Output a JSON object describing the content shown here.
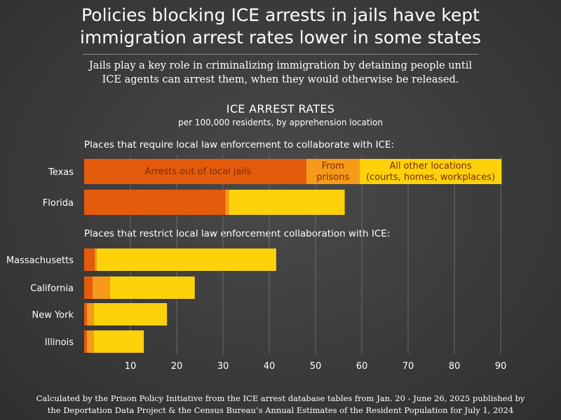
{
  "title_line1": "Policies blocking ICE arrests in jails have kept",
  "title_line2": "immigration arrest rates lower in some states",
  "subtitle_line1": "Jails play a key role in criminalizing immigration by detaining people until",
  "subtitle_line2": "ICE agents can arrest them, when they would otherwise be released.",
  "chart_heading": "ICE ARREST RATES",
  "chart_subheading": "per 100,000 residents, by apprehension location",
  "section1_label": "Places that require local law enforcement to collaborate with ICE:",
  "section2_label": "Places that restrict local law enforcement collaboration with ICE:",
  "footer_line1": "Calculated by the Prison Policy Initiative from the ICE arrest database tables from Jan. 20 - June 26, 2025 published by",
  "footer_line2": "the Deportation Data Project & the Census Bureau’s Annual Estimates of the Resident Population for July 1, 2024",
  "colors": {
    "jails": "#e55b0c",
    "prisons": "#f79a1a",
    "other": "#fdd20a",
    "grid": "#6a6a6a"
  },
  "chart_data": {
    "type": "bar",
    "orientation": "horizontal",
    "stacked": true,
    "title": "ICE ARREST RATES",
    "subtitle": "per 100,000 residents, by apprehension location",
    "xlim": [
      0,
      92
    ],
    "xticks": [
      10,
      20,
      30,
      40,
      50,
      60,
      70,
      80,
      90
    ],
    "series": [
      {
        "name": "Arrests out of local jails",
        "label_lines": [
          "Arrests out of local jails"
        ],
        "color": "#e55b0c"
      },
      {
        "name": "From prisons",
        "label_lines": [
          "From",
          "prisons"
        ],
        "color": "#f79a1a"
      },
      {
        "name": "All other locations (courts, homes, workplaces)",
        "label_lines": [
          "All other locations",
          "(courts, homes, workplaces)"
        ],
        "color": "#fdd20a"
      }
    ],
    "groups": [
      {
        "label": "Places that require local law enforcement to collaborate with ICE:",
        "rows": [
          {
            "category": "Texas",
            "values": [
              48.0,
              11.5,
              30.7
            ]
          },
          {
            "category": "Florida",
            "values": [
              30.5,
              0.8,
              25.0
            ]
          }
        ]
      },
      {
        "label": "Places that restrict local law enforcement collaboration with ICE:",
        "rows": [
          {
            "category": "Massachusetts",
            "values": [
              2.3,
              0.4,
              38.8
            ]
          },
          {
            "category": "California",
            "values": [
              1.8,
              3.8,
              18.3
            ]
          },
          {
            "category": "New York",
            "values": [
              0.6,
              1.5,
              15.8
            ]
          },
          {
            "category": "Illinois",
            "values": [
              0.6,
              1.5,
              10.8
            ]
          }
        ]
      }
    ]
  }
}
